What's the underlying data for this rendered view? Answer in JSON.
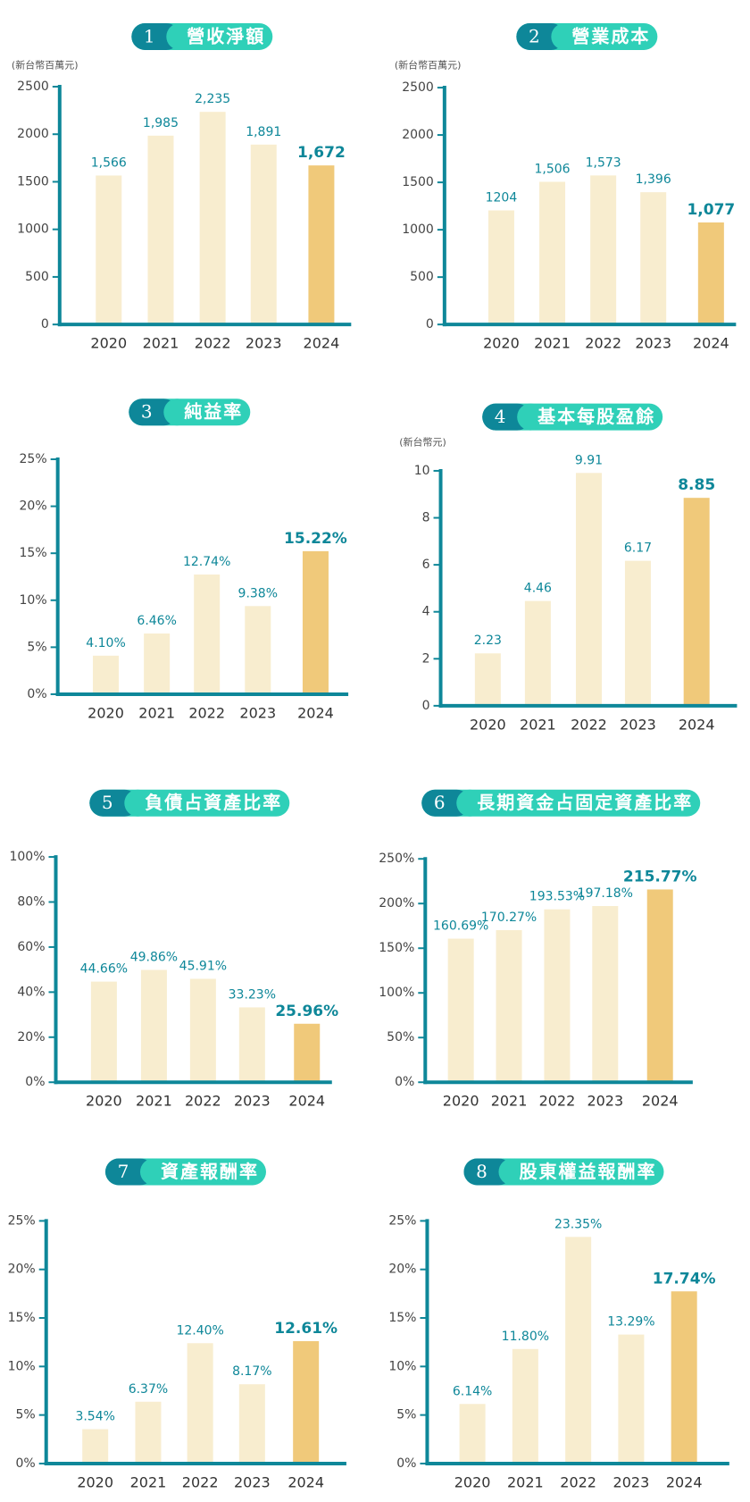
{
  "chart_data": [
    {
      "type": "bar",
      "number": "1",
      "title": "營收淨額",
      "unit": "(新台幣百萬元)",
      "categories": [
        "2020",
        "2021",
        "2022",
        "2023",
        "2024"
      ],
      "values": [
        1566,
        1985,
        2235,
        1891,
        1672
      ],
      "value_labels": [
        "1,566",
        "1,985",
        "2,235",
        "1,891",
        "1,672"
      ],
      "colors": [
        "#f8edcf",
        "#f8edcf",
        "#f8edcf",
        "#f8edcf",
        "#f0c97a"
      ],
      "ylim": [
        0,
        2500
      ],
      "yticks": [
        0,
        500,
        1000,
        1500,
        2000,
        2500
      ]
    },
    {
      "type": "bar",
      "number": "2",
      "title": "營業成本",
      "unit": "(新台幣百萬元)",
      "categories": [
        "2020",
        "2021",
        "2022",
        "2023",
        "2024"
      ],
      "values": [
        1204,
        1506,
        1573,
        1396,
        1077
      ],
      "value_labels": [
        "1204",
        "1,506",
        "1,573",
        "1,396",
        "1,077"
      ],
      "colors": [
        "#f8edcf",
        "#f8edcf",
        "#f8edcf",
        "#f8edcf",
        "#f0c97a"
      ],
      "ylim": [
        0,
        2500
      ],
      "yticks": [
        0,
        500,
        1000,
        1500,
        2000,
        2500
      ]
    },
    {
      "type": "bar",
      "number": "3",
      "title": "純益率",
      "categories": [
        "2020",
        "2021",
        "2022",
        "2023",
        "2024"
      ],
      "values": [
        4.1,
        6.46,
        12.74,
        9.38,
        15.22
      ],
      "value_labels": [
        "4.10%",
        "6.46%",
        "12.74%",
        "9.38%",
        "15.22%"
      ],
      "colors": [
        "#f8edcf",
        "#f8edcf",
        "#f8edcf",
        "#f8edcf",
        "#f0c97a"
      ],
      "ylim": [
        0,
        25
      ],
      "yticks": [
        {
          "value": 0,
          "label": "0%"
        },
        {
          "value": 5,
          "label": "5%"
        },
        {
          "value": 10,
          "label": "10%"
        },
        {
          "value": 15,
          "label": "15%"
        },
        {
          "value": 20,
          "label": "20%"
        },
        {
          "value": 25,
          "label": "25%"
        }
      ]
    },
    {
      "type": "bar",
      "number": "4",
      "title": "基本每股盈餘",
      "unit": "(新台幣元)",
      "categories": [
        "2020",
        "2021",
        "2022",
        "2023",
        "2024"
      ],
      "values": [
        2.23,
        4.46,
        9.91,
        6.17,
        8.85
      ],
      "colors": [
        "#f8edcf",
        "#f8edcf",
        "#f8edcf",
        "#f8edcf",
        "#f0c97a"
      ],
      "ylim": [
        0,
        10
      ],
      "yticks": [
        0,
        2,
        4,
        6,
        8,
        10
      ]
    },
    {
      "type": "bar",
      "number": "5",
      "title": "負債占資產比率",
      "categories": [
        "2020",
        "2021",
        "2022",
        "2023",
        "2024"
      ],
      "values": [
        44.66,
        49.86,
        45.91,
        33.23,
        25.96
      ],
      "value_labels": [
        "44.66%",
        "49.86%",
        "45.91%",
        "33.23%",
        "25.96%"
      ],
      "colors": [
        "#f8edcf",
        "#f8edcf",
        "#f8edcf",
        "#f8edcf",
        "#f0c97a"
      ],
      "ylim": [
        0,
        100
      ],
      "yticks": [
        {
          "value": 0,
          "label": "0%"
        },
        {
          "value": 20,
          "label": "20%"
        },
        {
          "value": 40,
          "label": "40%"
        },
        {
          "value": 60,
          "label": "60%"
        },
        {
          "value": 80,
          "label": "80%"
        },
        {
          "value": 100,
          "label": "100%"
        }
      ]
    },
    {
      "type": "bar",
      "number": "6",
      "title": "長期資金占固定資產比率",
      "categories": [
        "2020",
        "2021",
        "2022",
        "2023",
        "2024"
      ],
      "values": [
        160.69,
        170.27,
        193.53,
        197.18,
        215.77
      ],
      "value_labels": [
        "160.69%",
        "170.27%",
        "193.53%",
        "197.18%",
        "215.77%"
      ],
      "colors": [
        "#f8edcf",
        "#f8edcf",
        "#f8edcf",
        "#f8edcf",
        "#f0c97a"
      ],
      "ylim": [
        0,
        250
      ],
      "yticks": [
        {
          "value": 0,
          "label": "0%"
        },
        {
          "value": 50,
          "label": "50%"
        },
        {
          "value": 100,
          "label": "100%"
        },
        {
          "value": 150,
          "label": "150%"
        },
        {
          "value": 200,
          "label": "200%"
        },
        {
          "value": 250,
          "label": "250%"
        }
      ]
    },
    {
      "type": "bar",
      "number": "7",
      "title": "資產報酬率",
      "categories": [
        "2020",
        "2021",
        "2022",
        "2023",
        "2024"
      ],
      "values": [
        3.54,
        6.37,
        12.4,
        8.17,
        12.61
      ],
      "value_labels": [
        "3.54%",
        "6.37%",
        "12.40%",
        "8.17%",
        "12.61%"
      ],
      "colors": [
        "#f8edcf",
        "#f8edcf",
        "#f8edcf",
        "#f8edcf",
        "#f0c97a"
      ],
      "ylim": [
        0,
        25
      ],
      "yticks": [
        {
          "value": 0,
          "label": "0%"
        },
        {
          "value": 5,
          "label": "5%"
        },
        {
          "value": 10,
          "label": "10%"
        },
        {
          "value": 15,
          "label": "15%"
        },
        {
          "value": 20,
          "label": "20%"
        },
        {
          "value": 25,
          "label": "25%"
        }
      ]
    },
    {
      "type": "bar",
      "number": "8",
      "title": "股東權益報酬率",
      "categories": [
        "2020",
        "2021",
        "2022",
        "2023",
        "2024"
      ],
      "values": [
        6.14,
        11.8,
        23.35,
        13.29,
        17.74
      ],
      "value_labels": [
        "6.14%",
        "11.80%",
        "23.35%",
        "13.29%",
        "17.74%"
      ],
      "colors": [
        "#f8edcf",
        "#f8edcf",
        "#f8edcf",
        "#f8edcf",
        "#f0c97a"
      ],
      "ylim": [
        0,
        25
      ],
      "yticks": [
        {
          "value": 0,
          "label": "0%"
        },
        {
          "value": 5,
          "label": "5%"
        },
        {
          "value": 10,
          "label": "10%"
        },
        {
          "value": 15,
          "label": "15%"
        },
        {
          "value": 20,
          "label": "20%"
        },
        {
          "value": 25,
          "label": "25%"
        }
      ]
    }
  ]
}
